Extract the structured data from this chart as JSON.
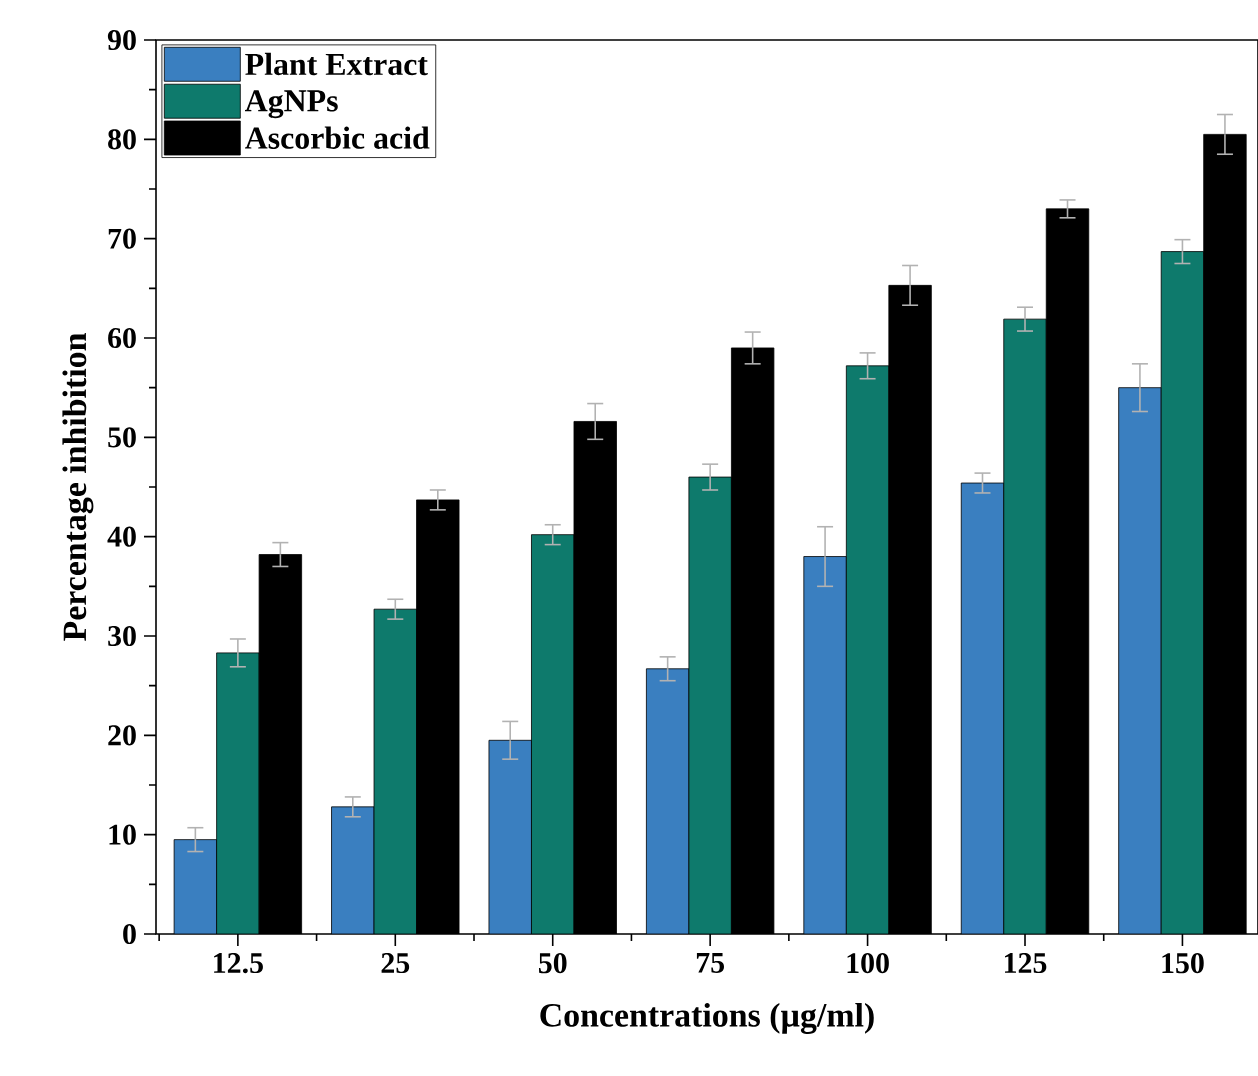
{
  "chart_data": {
    "type": "bar",
    "xlabel": "Concentrations (µg/ml)",
    "ylabel": "Percentage inhibition",
    "categories": [
      "12.5",
      "25",
      "50",
      "75",
      "100",
      "125",
      "150"
    ],
    "series": [
      {
        "name": "Plant Extract",
        "color": "#3a7fc0",
        "values": [
          9.5,
          12.8,
          19.5,
          26.7,
          38.0,
          45.4,
          55.0
        ],
        "errors": [
          1.2,
          1.0,
          1.9,
          1.2,
          3.0,
          1.0,
          2.4
        ]
      },
      {
        "name": "AgNPs",
        "color": "#0e7a6c",
        "values": [
          28.3,
          32.7,
          40.2,
          46.0,
          57.2,
          61.9,
          68.7
        ],
        "errors": [
          1.4,
          1.0,
          1.0,
          1.3,
          1.3,
          1.2,
          1.2
        ]
      },
      {
        "name": "Ascorbic acid",
        "color": "#000000",
        "values": [
          38.2,
          43.7,
          51.6,
          59.0,
          65.3,
          73.0,
          80.5
        ],
        "errors": [
          1.2,
          1.0,
          1.8,
          1.6,
          2.0,
          0.9,
          2.0
        ]
      }
    ],
    "ylim": [
      0,
      90
    ],
    "yticks": [
      0,
      10,
      20,
      30,
      40,
      50,
      60,
      70,
      80,
      90
    ],
    "legend": "top left",
    "grid": false
  }
}
